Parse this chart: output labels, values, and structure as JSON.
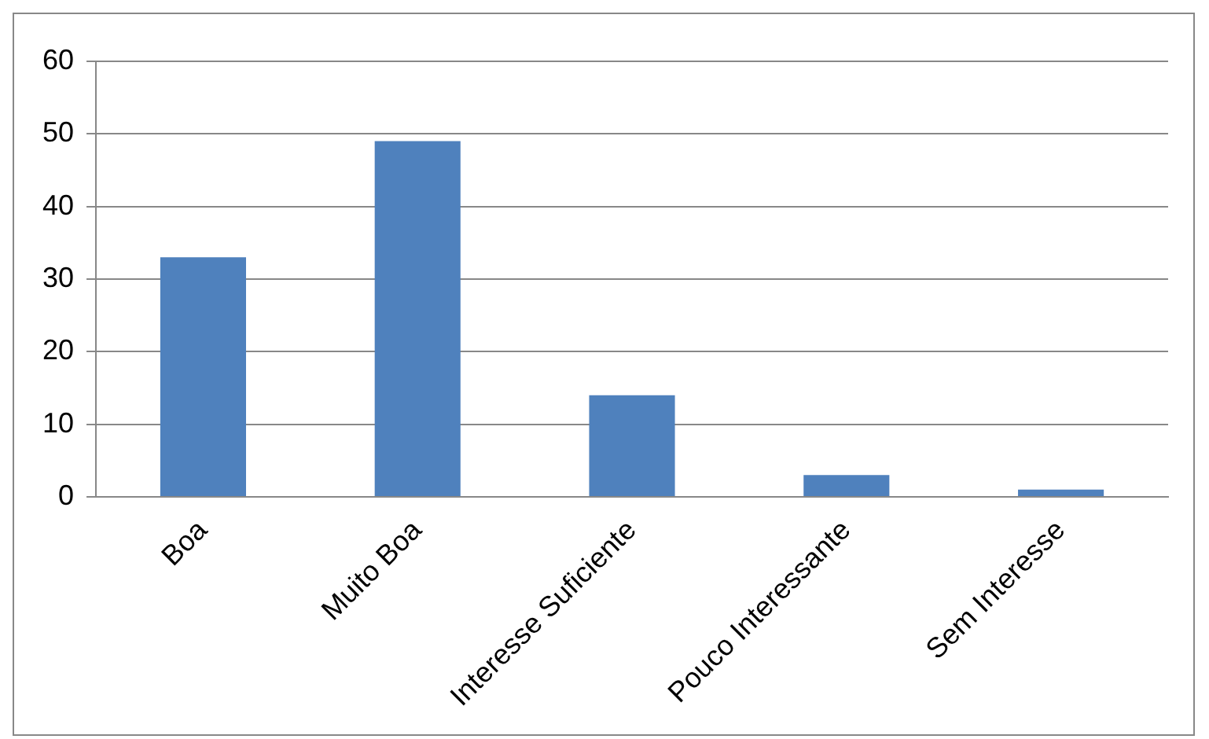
{
  "chart_data": {
    "type": "bar",
    "categories": [
      "Boa",
      "Muito Boa",
      "Interesse Suficiente",
      "Pouco Interessante",
      "Sem Interesse"
    ],
    "values": [
      33,
      49,
      14,
      3,
      1
    ],
    "color": "#4f81bd",
    "ylim": [
      0,
      60
    ],
    "yticks": [
      0,
      10,
      20,
      30,
      40,
      50,
      60
    ],
    "grid": "y",
    "legend": false
  }
}
